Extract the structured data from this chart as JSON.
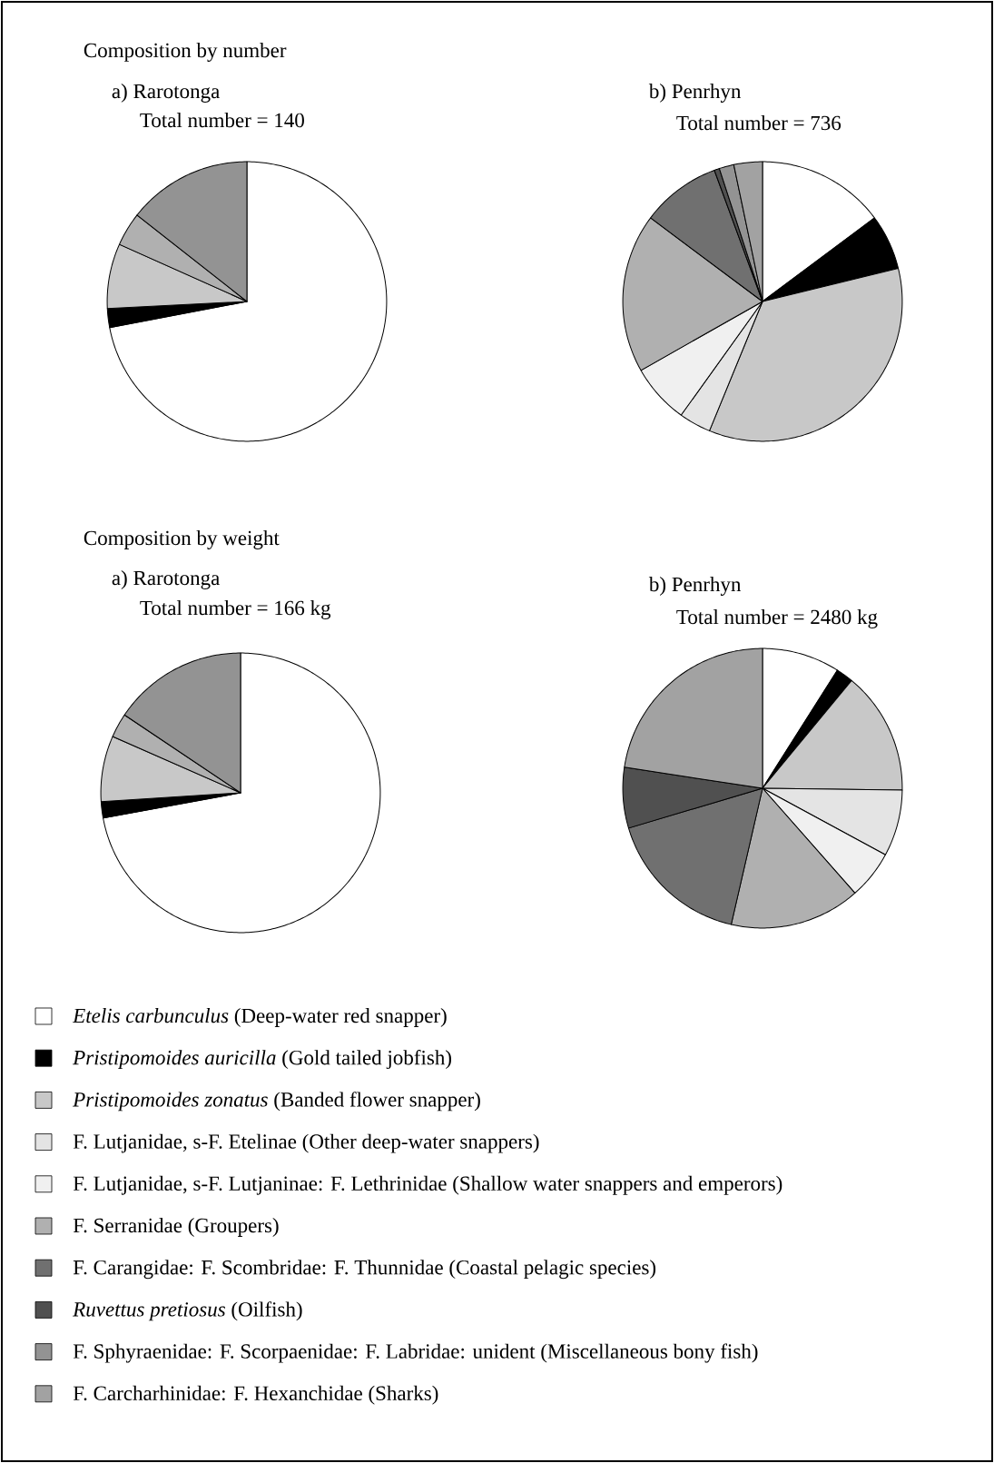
{
  "chart_data": [
    {
      "type": "pie",
      "title": "a) Rarotonga",
      "subtitle": "Total number = 140",
      "annotations": [
        "Composition by number"
      ],
      "legend": "bottom",
      "categories": [
        "*Etelis carbunculus* (Deep-water red snapper)",
        "*Pristipomoides auricilla* (Gold tailed jobfish)",
        "*Pristipomoides zonatus* (Banded flower snapper)",
        "F. Lutjanidae, s-F. Etelinae (Other deep-water snappers)",
        "F. Lutjanidae, s-F. Lutjaninae: F. Lethrinidae (Shallow water snappers and emperors)",
        "F. Serranidae (Groupers)",
        "F. Carangidae: F. Scombridae: F. Thunnidae (Coastal pelagic species)",
        "*Ruvettus pretiosus* (Oilfish)",
        "F. Sphyraenidae: F. Scorpaenidae: F. Labridae: unident (Miscellaneous bony fish)",
        "F. Carcharhinidae: F. Hexanchidae (Sharks)"
      ],
      "values": [
        72.0,
        2.2,
        7.5,
        0,
        0,
        3.9,
        0,
        0,
        14.4,
        0
      ],
      "colors": [
        "#ffffff",
        "#000000",
        "#c8c8c8",
        "#e4e4e4",
        "#f0f0f0",
        "#b0b0b0",
        "#707070",
        "#505050",
        "#939393",
        "#a2a2a2"
      ]
    },
    {
      "type": "pie",
      "title": "b) Penrhyn",
      "subtitle": "Total number = 736",
      "categories": [
        null,
        null,
        null,
        null,
        null,
        null,
        null,
        null,
        null,
        null
      ],
      "values": [
        14.8,
        6.4,
        35.0,
        3.7,
        6.9,
        18.4,
        9.2,
        0.6,
        1.7,
        3.3
      ],
      "colors": [
        "#ffffff",
        "#000000",
        "#c8c8c8",
        "#e4e4e4",
        "#f0f0f0",
        "#b0b0b0",
        "#707070",
        "#505050",
        "#939393",
        "#a2a2a2"
      ]
    },
    {
      "type": "pie",
      "title": "a) Rarotonga",
      "subtitle": "Total number = 166 kg",
      "annotations": [
        "Composition by weight"
      ],
      "categories": [
        null,
        null,
        null,
        null,
        null,
        null,
        null,
        null,
        null,
        null
      ],
      "values": [
        72.1,
        1.9,
        7.6,
        0,
        0,
        2.8,
        0,
        0,
        15.6,
        0
      ],
      "colors": [
        "#ffffff",
        "#000000",
        "#c8c8c8",
        "#e4e4e4",
        "#f0f0f0",
        "#b0b0b0",
        "#707070",
        "#505050",
        "#939393",
        "#a2a2a2"
      ]
    },
    {
      "type": "pie",
      "title": "b) Penrhyn",
      "subtitle": "Total number = 2480 kg",
      "categories": [
        null,
        null,
        null,
        null,
        null,
        null,
        null,
        null,
        null,
        null
      ],
      "values": [
        9.0,
        2.0,
        14.2,
        7.7,
        5.6,
        15.1,
        16.8,
        7.0,
        0,
        22.6
      ],
      "colors": [
        "#ffffff",
        "#000000",
        "#c8c8c8",
        "#e4e4e4",
        "#f0f0f0",
        "#b0b0b0",
        "#707070",
        "#505050",
        "#939393",
        "#a2a2a2"
      ]
    }
  ]
}
